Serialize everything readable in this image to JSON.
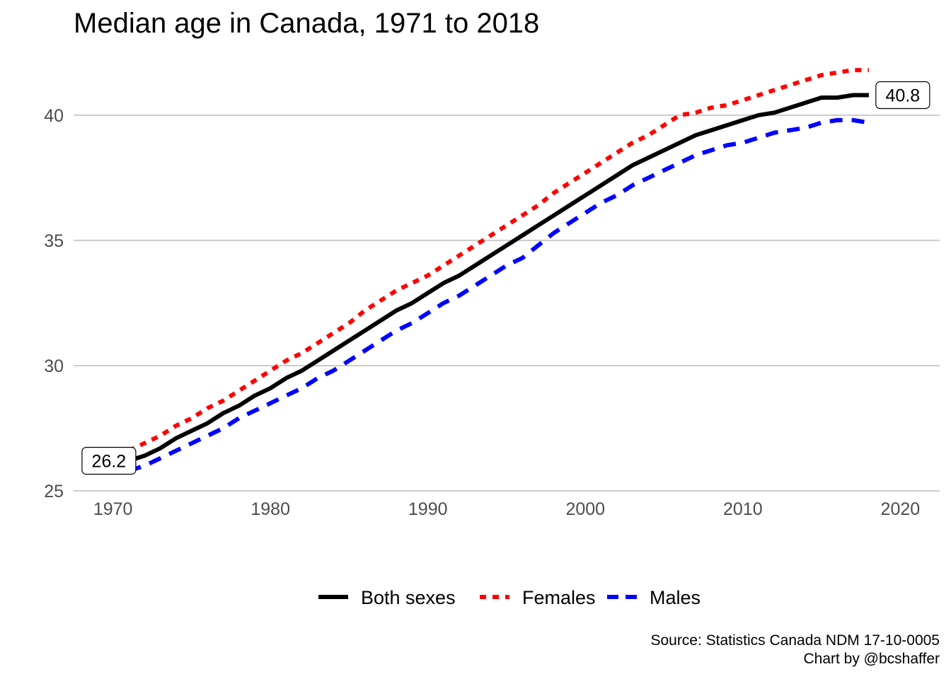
{
  "chart_data": {
    "type": "line",
    "title": "Median age in Canada, 1971 to 2018",
    "xlabel": "",
    "ylabel": "",
    "xlim": [
      1967.5,
      2022.5
    ],
    "ylim": [
      25,
      42
    ],
    "x_ticks": [
      "1970",
      "1980",
      "1990",
      "2000",
      "2010",
      "2020"
    ],
    "y_ticks": [
      "25",
      "30",
      "35",
      "40"
    ],
    "grid": "horizontal major gridlines",
    "legend_position": "bottom",
    "x": [
      1971,
      1972,
      1973,
      1974,
      1975,
      1976,
      1977,
      1978,
      1979,
      1980,
      1981,
      1982,
      1983,
      1984,
      1985,
      1986,
      1987,
      1988,
      1989,
      1990,
      1991,
      1992,
      1993,
      1994,
      1995,
      1996,
      1997,
      1998,
      1999,
      2000,
      2001,
      2002,
      2003,
      2004,
      2005,
      2006,
      2007,
      2008,
      2009,
      2010,
      2011,
      2012,
      2013,
      2014,
      2015,
      2016,
      2017,
      2018
    ],
    "series": [
      {
        "name": "Both sexes",
        "color": "#000000",
        "dash": "solid",
        "values": [
          26.2,
          26.4,
          26.7,
          27.1,
          27.4,
          27.7,
          28.1,
          28.4,
          28.8,
          29.1,
          29.5,
          29.8,
          30.2,
          30.6,
          31.0,
          31.4,
          31.8,
          32.2,
          32.5,
          32.9,
          33.3,
          33.6,
          34.0,
          34.4,
          34.8,
          35.2,
          35.6,
          36.0,
          36.4,
          36.8,
          37.2,
          37.6,
          38.0,
          38.3,
          38.6,
          38.9,
          39.2,
          39.4,
          39.6,
          39.8,
          40.0,
          40.1,
          40.3,
          40.5,
          40.7,
          40.7,
          40.8,
          40.8
        ]
      },
      {
        "name": "Females",
        "color": "#ff0000",
        "dash": "dotted",
        "values": [
          26.6,
          26.9,
          27.2,
          27.6,
          27.9,
          28.3,
          28.6,
          29.0,
          29.4,
          29.8,
          30.2,
          30.5,
          30.9,
          31.3,
          31.7,
          32.2,
          32.6,
          33.0,
          33.3,
          33.6,
          34.0,
          34.4,
          34.8,
          35.2,
          35.6,
          36.0,
          36.4,
          36.9,
          37.3,
          37.7,
          38.1,
          38.5,
          38.9,
          39.2,
          39.6,
          40.0,
          40.1,
          40.3,
          40.4,
          40.6,
          40.8,
          41.0,
          41.2,
          41.4,
          41.6,
          41.7,
          41.8,
          41.8
        ]
      },
      {
        "name": "Males",
        "color": "#0000ff",
        "dash": "dashed",
        "values": [
          25.8,
          26.0,
          26.3,
          26.6,
          26.9,
          27.2,
          27.5,
          27.9,
          28.2,
          28.5,
          28.8,
          29.1,
          29.5,
          29.8,
          30.2,
          30.6,
          31.0,
          31.4,
          31.7,
          32.1,
          32.5,
          32.8,
          33.2,
          33.6,
          34.0,
          34.3,
          34.8,
          35.3,
          35.7,
          36.1,
          36.5,
          36.8,
          37.2,
          37.5,
          37.8,
          38.1,
          38.4,
          38.6,
          38.8,
          38.9,
          39.1,
          39.3,
          39.4,
          39.5,
          39.7,
          39.8,
          39.8,
          39.7
        ]
      }
    ],
    "annotations": [
      {
        "text": "26.2",
        "x": 1971,
        "y": 26.2
      },
      {
        "text": "40.8",
        "x": 2018,
        "y": 40.8
      }
    ],
    "caption": [
      "Source: Statistics Canada NDM 17-10-0005",
      "Chart by @bcshaffer"
    ]
  }
}
